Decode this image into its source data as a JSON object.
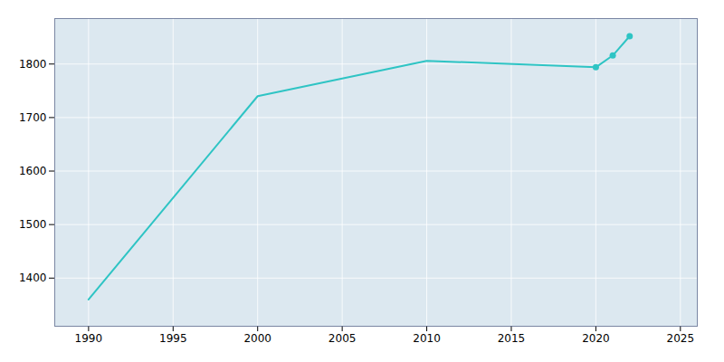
{
  "chart_data": {
    "type": "line",
    "x": [
      1990,
      2000,
      2010,
      2020,
      2021,
      2022
    ],
    "series": [
      {
        "type": "line",
        "color": "#2ec4c4",
        "values": [
          1360,
          1740,
          1806,
          1794,
          1816,
          1852
        ]
      },
      {
        "type": "scatter",
        "marker": "circle",
        "color": "#2ec4c4",
        "values": [
          null,
          null,
          null,
          1794,
          1816,
          1852
        ]
      }
    ],
    "xlim": [
      1988,
      2026
    ],
    "ylim": [
      1310,
      1885
    ],
    "xticks": [
      1990,
      1995,
      2000,
      2005,
      2010,
      2015,
      2020,
      2025
    ],
    "yticks": [
      1400,
      1500,
      1600,
      1700,
      1800
    ],
    "grid": true
  }
}
